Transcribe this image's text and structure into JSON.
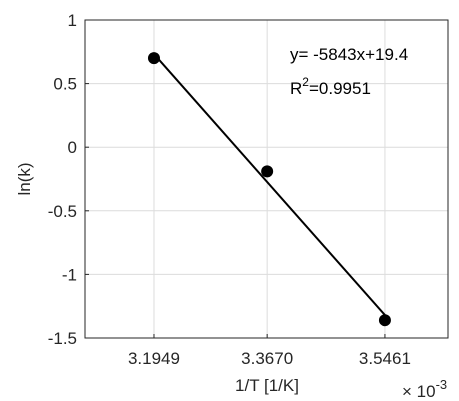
{
  "chart_data": {
    "type": "scatter",
    "xlabel": "1/T [1/K]",
    "ylabel": "ln(k)",
    "x_exponent_prefix": "× 10",
    "x_exponent_power": "-3",
    "x_scale": 0.001,
    "xlim": [
      3.09,
      3.642
    ],
    "ylim": [
      -1.5,
      1
    ],
    "xticks": [
      3.1949,
      3.367,
      3.5461
    ],
    "xtick_labels": [
      "3.1949",
      "3.3670",
      "3.5461"
    ],
    "yticks": [
      1,
      0.5,
      0,
      -0.5,
      -1,
      -1.5
    ],
    "ytick_labels": [
      "1",
      "0.5",
      "0",
      "-0.5",
      "-1",
      "-1.5"
    ],
    "grid": true,
    "series": [
      {
        "points": [
          {
            "x": 3.1949,
            "y": 0.7
          },
          {
            "x": 3.367,
            "y": -0.19
          },
          {
            "x": 3.5461,
            "y": -1.36
          }
        ],
        "marker": "filled-circle",
        "color": "#000000"
      }
    ],
    "fit_line": {
      "x_range": [
        3.1949,
        3.5461
      ],
      "slope": -5843,
      "intercept": 19.4,
      "color": "#000000"
    },
    "annotations": {
      "equation": "y= -5843x+19.4",
      "r2_prefix": "R",
      "r2_power": "2",
      "r2_value": "=0.9951"
    }
  }
}
